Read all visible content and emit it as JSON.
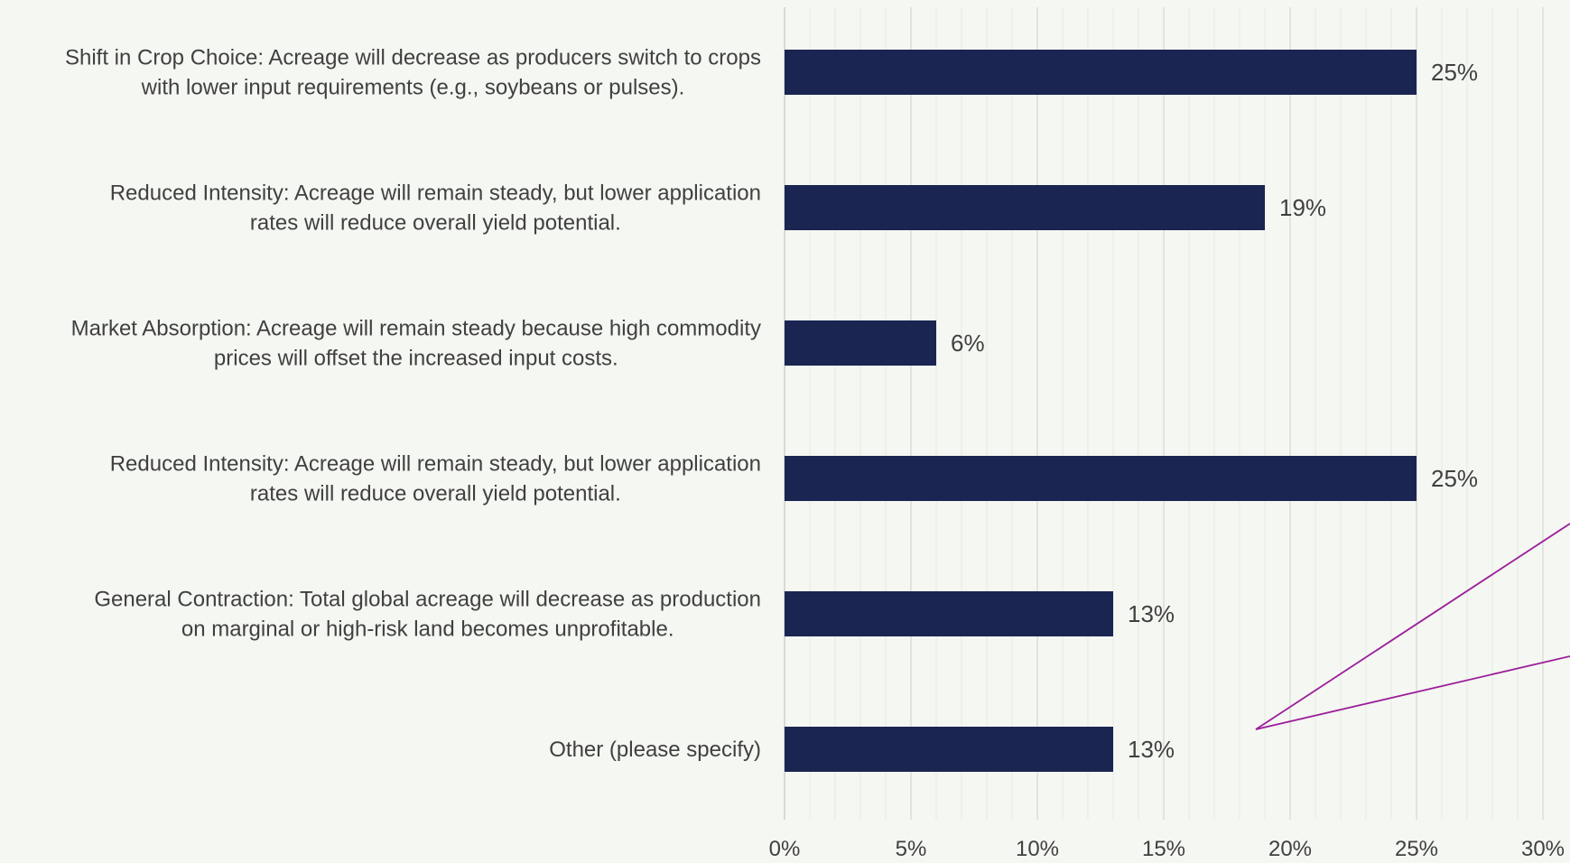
{
  "chart_data": {
    "type": "bar",
    "orientation": "horizontal",
    "categories": [
      [
        "Shift in Crop Choice: Acreage will decrease as producers switch to crops",
        "with lower input requirements (e.g., soybeans or pulses)."
      ],
      [
        "Reduced Intensity: Acreage will remain steady, but lower application",
        "rates will reduce overall yield potential."
      ],
      [
        "Market Absorption: Acreage will remain steady because high commodity",
        "prices will offset the increased input costs."
      ],
      [
        "Reduced Intensity: Acreage will remain steady, but lower application",
        "rates will reduce overall yield potential."
      ],
      [
        "General Contraction: Total global acreage will decrease as production",
        "on marginal or high-risk land becomes unprofitable."
      ],
      [
        "Other (please specify)"
      ]
    ],
    "values": [
      25,
      19,
      6,
      25,
      13,
      13
    ],
    "value_labels": [
      "25%",
      "19%",
      "6%",
      "25%",
      "13%",
      "13%"
    ],
    "xlim": [
      0,
      30
    ],
    "x_ticks": [
      0,
      5,
      10,
      15,
      20,
      25,
      30
    ],
    "x_tick_labels": [
      "0%",
      "5%",
      "10%",
      "15%",
      "20%",
      "25%",
      "30%"
    ],
    "grid": "vertical major and minor",
    "bar_color": "#1a2552",
    "label_color": "#404040",
    "background_color": "#f5f7f2",
    "annotation_color": "#9b1f9a"
  }
}
